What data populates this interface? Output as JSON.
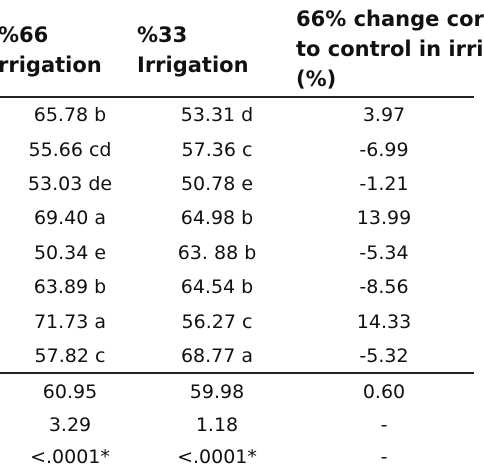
{
  "header": {
    "col66": [
      "%66",
      "rrigation"
    ],
    "col33": [
      "%33",
      "Irrigation"
    ],
    "colChange": [
      "66% change cor",
      "to control in irri",
      "(%)"
    ]
  },
  "rows": [
    {
      "irr66": "65.78 b",
      "irr33": "53.31 d",
      "change": "3.97"
    },
    {
      "irr66": "55.66 cd",
      "irr33": "57.36 c",
      "change": "-6.99"
    },
    {
      "irr66": "53.03 de",
      "irr33": "50.78 e",
      "change": "-1.21"
    },
    {
      "irr66": "69.40 a",
      "irr33": "64.98 b",
      "change": "13.99"
    },
    {
      "irr66": "50.34 e",
      "irr33": "63. 88 b",
      "change": "-5.34"
    },
    {
      "irr66": "63.89 b",
      "irr33": "64.54 b",
      "change": "-8.56"
    },
    {
      "irr66": "71.73 a",
      "irr33": "56.27 c",
      "change": "14.33"
    },
    {
      "irr66": "57.82 c",
      "irr33": "68.77 a",
      "change": "-5.32"
    }
  ],
  "stats": [
    {
      "irr66": "60.95",
      "irr33": "59.98",
      "change": "0.60"
    },
    {
      "irr66": "3.29",
      "irr33": "1.18",
      "change": "-"
    },
    {
      "irr66": "<.0001*",
      "irr33": "<.0001*",
      "change": "-"
    }
  ]
}
